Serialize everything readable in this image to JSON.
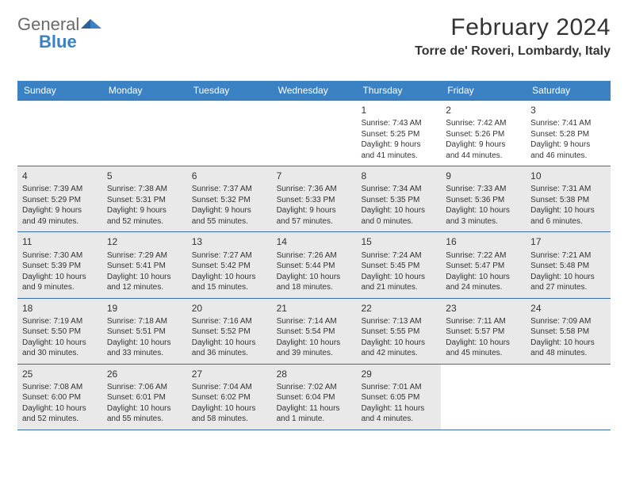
{
  "brand": {
    "general": "General",
    "blue": "Blue"
  },
  "header": {
    "month_title": "February 2024",
    "location": "Torre de' Roveri, Lombardy, Italy"
  },
  "colors": {
    "header_bar": "#3b82c4",
    "header_text": "#ffffff",
    "week_divider": "#3b6da3",
    "shaded_bg": "#e9e9e9",
    "body_text": "#333333",
    "logo_gray": "#6a6a6a",
    "logo_blue": "#3b82c4",
    "page_bg": "#ffffff"
  },
  "weekdays": [
    "Sunday",
    "Monday",
    "Tuesday",
    "Wednesday",
    "Thursday",
    "Friday",
    "Saturday"
  ],
  "weeks": [
    [
      {
        "num": "",
        "shaded": false,
        "lines": []
      },
      {
        "num": "",
        "shaded": false,
        "lines": []
      },
      {
        "num": "",
        "shaded": false,
        "lines": []
      },
      {
        "num": "",
        "shaded": false,
        "lines": []
      },
      {
        "num": "1",
        "shaded": false,
        "lines": [
          "Sunrise: 7:43 AM",
          "Sunset: 5:25 PM",
          "Daylight: 9 hours",
          "and 41 minutes."
        ]
      },
      {
        "num": "2",
        "shaded": false,
        "lines": [
          "Sunrise: 7:42 AM",
          "Sunset: 5:26 PM",
          "Daylight: 9 hours",
          "and 44 minutes."
        ]
      },
      {
        "num": "3",
        "shaded": false,
        "lines": [
          "Sunrise: 7:41 AM",
          "Sunset: 5:28 PM",
          "Daylight: 9 hours",
          "and 46 minutes."
        ]
      }
    ],
    [
      {
        "num": "4",
        "shaded": true,
        "lines": [
          "Sunrise: 7:39 AM",
          "Sunset: 5:29 PM",
          "Daylight: 9 hours",
          "and 49 minutes."
        ]
      },
      {
        "num": "5",
        "shaded": true,
        "lines": [
          "Sunrise: 7:38 AM",
          "Sunset: 5:31 PM",
          "Daylight: 9 hours",
          "and 52 minutes."
        ]
      },
      {
        "num": "6",
        "shaded": true,
        "lines": [
          "Sunrise: 7:37 AM",
          "Sunset: 5:32 PM",
          "Daylight: 9 hours",
          "and 55 minutes."
        ]
      },
      {
        "num": "7",
        "shaded": true,
        "lines": [
          "Sunrise: 7:36 AM",
          "Sunset: 5:33 PM",
          "Daylight: 9 hours",
          "and 57 minutes."
        ]
      },
      {
        "num": "8",
        "shaded": true,
        "lines": [
          "Sunrise: 7:34 AM",
          "Sunset: 5:35 PM",
          "Daylight: 10 hours",
          "and 0 minutes."
        ]
      },
      {
        "num": "9",
        "shaded": true,
        "lines": [
          "Sunrise: 7:33 AM",
          "Sunset: 5:36 PM",
          "Daylight: 10 hours",
          "and 3 minutes."
        ]
      },
      {
        "num": "10",
        "shaded": true,
        "lines": [
          "Sunrise: 7:31 AM",
          "Sunset: 5:38 PM",
          "Daylight: 10 hours",
          "and 6 minutes."
        ]
      }
    ],
    [
      {
        "num": "11",
        "shaded": true,
        "lines": [
          "Sunrise: 7:30 AM",
          "Sunset: 5:39 PM",
          "Daylight: 10 hours",
          "and 9 minutes."
        ]
      },
      {
        "num": "12",
        "shaded": true,
        "lines": [
          "Sunrise: 7:29 AM",
          "Sunset: 5:41 PM",
          "Daylight: 10 hours",
          "and 12 minutes."
        ]
      },
      {
        "num": "13",
        "shaded": true,
        "lines": [
          "Sunrise: 7:27 AM",
          "Sunset: 5:42 PM",
          "Daylight: 10 hours",
          "and 15 minutes."
        ]
      },
      {
        "num": "14",
        "shaded": true,
        "lines": [
          "Sunrise: 7:26 AM",
          "Sunset: 5:44 PM",
          "Daylight: 10 hours",
          "and 18 minutes."
        ]
      },
      {
        "num": "15",
        "shaded": true,
        "lines": [
          "Sunrise: 7:24 AM",
          "Sunset: 5:45 PM",
          "Daylight: 10 hours",
          "and 21 minutes."
        ]
      },
      {
        "num": "16",
        "shaded": true,
        "lines": [
          "Sunrise: 7:22 AM",
          "Sunset: 5:47 PM",
          "Daylight: 10 hours",
          "and 24 minutes."
        ]
      },
      {
        "num": "17",
        "shaded": true,
        "lines": [
          "Sunrise: 7:21 AM",
          "Sunset: 5:48 PM",
          "Daylight: 10 hours",
          "and 27 minutes."
        ]
      }
    ],
    [
      {
        "num": "18",
        "shaded": true,
        "lines": [
          "Sunrise: 7:19 AM",
          "Sunset: 5:50 PM",
          "Daylight: 10 hours",
          "and 30 minutes."
        ]
      },
      {
        "num": "19",
        "shaded": true,
        "lines": [
          "Sunrise: 7:18 AM",
          "Sunset: 5:51 PM",
          "Daylight: 10 hours",
          "and 33 minutes."
        ]
      },
      {
        "num": "20",
        "shaded": true,
        "lines": [
          "Sunrise: 7:16 AM",
          "Sunset: 5:52 PM",
          "Daylight: 10 hours",
          "and 36 minutes."
        ]
      },
      {
        "num": "21",
        "shaded": true,
        "lines": [
          "Sunrise: 7:14 AM",
          "Sunset: 5:54 PM",
          "Daylight: 10 hours",
          "and 39 minutes."
        ]
      },
      {
        "num": "22",
        "shaded": true,
        "lines": [
          "Sunrise: 7:13 AM",
          "Sunset: 5:55 PM",
          "Daylight: 10 hours",
          "and 42 minutes."
        ]
      },
      {
        "num": "23",
        "shaded": true,
        "lines": [
          "Sunrise: 7:11 AM",
          "Sunset: 5:57 PM",
          "Daylight: 10 hours",
          "and 45 minutes."
        ]
      },
      {
        "num": "24",
        "shaded": true,
        "lines": [
          "Sunrise: 7:09 AM",
          "Sunset: 5:58 PM",
          "Daylight: 10 hours",
          "and 48 minutes."
        ]
      }
    ],
    [
      {
        "num": "25",
        "shaded": true,
        "lines": [
          "Sunrise: 7:08 AM",
          "Sunset: 6:00 PM",
          "Daylight: 10 hours",
          "and 52 minutes."
        ]
      },
      {
        "num": "26",
        "shaded": true,
        "lines": [
          "Sunrise: 7:06 AM",
          "Sunset: 6:01 PM",
          "Daylight: 10 hours",
          "and 55 minutes."
        ]
      },
      {
        "num": "27",
        "shaded": true,
        "lines": [
          "Sunrise: 7:04 AM",
          "Sunset: 6:02 PM",
          "Daylight: 10 hours",
          "and 58 minutes."
        ]
      },
      {
        "num": "28",
        "shaded": true,
        "lines": [
          "Sunrise: 7:02 AM",
          "Sunset: 6:04 PM",
          "Daylight: 11 hours",
          "and 1 minute."
        ]
      },
      {
        "num": "29",
        "shaded": true,
        "lines": [
          "Sunrise: 7:01 AM",
          "Sunset: 6:05 PM",
          "Daylight: 11 hours",
          "and 4 minutes."
        ]
      },
      {
        "num": "",
        "shaded": false,
        "lines": []
      },
      {
        "num": "",
        "shaded": false,
        "lines": []
      }
    ]
  ]
}
